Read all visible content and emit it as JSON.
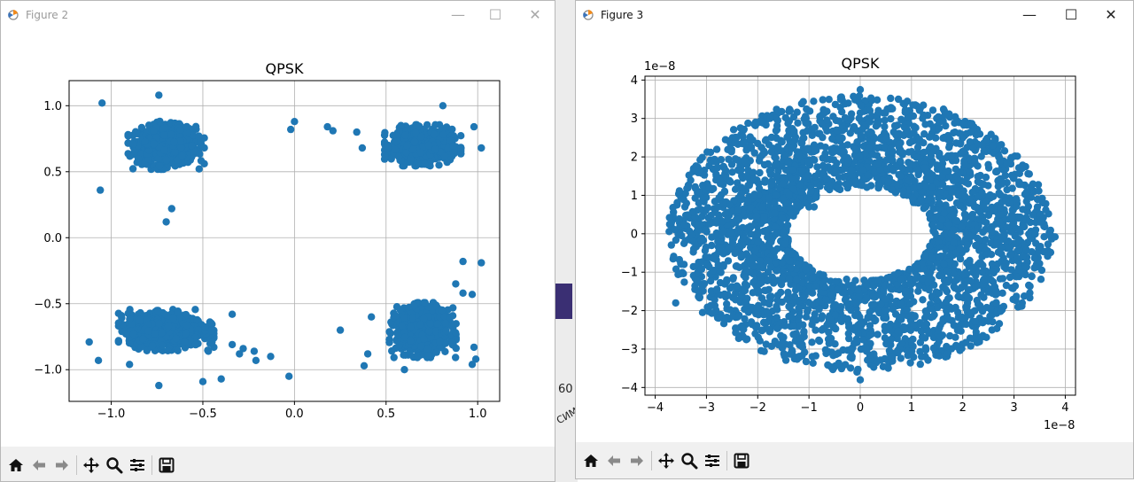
{
  "background": {
    "label_number": "60",
    "label_fragment": "СИМВ"
  },
  "windows": [
    {
      "id": "figure2",
      "title": "Figure 2",
      "active": false,
      "controls": {
        "minimize": "—",
        "maximize": "☐",
        "close": "✕"
      },
      "toolbar": {
        "icons": [
          "home-icon",
          "back-arrow-icon",
          "forward-arrow-icon",
          "pan-icon",
          "zoom-icon",
          "configure-subplots-icon",
          "save-icon"
        ]
      },
      "chart_data": {
        "type": "scatter",
        "title": "QPSK",
        "xlabel": "",
        "ylabel": "",
        "xlim": [
          -1.23,
          1.12
        ],
        "ylim": [
          -1.24,
          1.19
        ],
        "xticks": [
          -1.0,
          -0.5,
          0.0,
          0.5,
          1.0
        ],
        "xtick_labels": [
          "−1.0",
          "−0.5",
          "0.0",
          "0.5",
          "1.0"
        ],
        "yticks": [
          1.0,
          0.5,
          0.0,
          -0.5,
          -1.0
        ],
        "ytick_labels": [
          "1.0",
          "0.5",
          "0.0",
          "−0.5",
          "−1.0"
        ],
        "grid": true,
        "point_color": "#1f77b4",
        "clusters": [
          {
            "center": [
              -0.7,
              0.7
            ],
            "spread": [
              0.08,
              0.07
            ],
            "count": 900
          },
          {
            "center": [
              0.7,
              0.7
            ],
            "spread": [
              0.08,
              0.06
            ],
            "count": 700
          },
          {
            "center": [
              -0.7,
              -0.7
            ],
            "spread": [
              0.1,
              0.06
            ],
            "count": 1000
          },
          {
            "center": [
              0.7,
              -0.7
            ],
            "spread": [
              0.07,
              0.08
            ],
            "count": 900
          }
        ],
        "points": [
          [
            -1.05,
            1.02
          ],
          [
            -0.74,
            1.08
          ],
          [
            -1.06,
            0.36
          ],
          [
            -0.7,
            0.12
          ],
          [
            -0.67,
            0.22
          ],
          [
            -0.02,
            0.82
          ],
          [
            0.0,
            0.88
          ],
          [
            0.18,
            0.84
          ],
          [
            0.21,
            0.81
          ],
          [
            0.34,
            0.8
          ],
          [
            0.37,
            0.68
          ],
          [
            0.81,
            1.0
          ],
          [
            0.98,
            0.84
          ],
          [
            1.02,
            0.68
          ],
          [
            -1.12,
            -0.79
          ],
          [
            -1.07,
            -0.93
          ],
          [
            -0.9,
            -0.96
          ],
          [
            -0.74,
            -1.12
          ],
          [
            -0.5,
            -1.09
          ],
          [
            -0.4,
            -1.07
          ],
          [
            -0.3,
            -0.88
          ],
          [
            -0.28,
            -0.84
          ],
          [
            -0.22,
            -0.86
          ],
          [
            -0.21,
            -0.93
          ],
          [
            -0.13,
            -0.9
          ],
          [
            -0.34,
            -0.81
          ],
          [
            -0.45,
            -0.79
          ],
          [
            -0.47,
            -0.86
          ],
          [
            -0.34,
            -0.58
          ],
          [
            -0.03,
            -1.05
          ],
          [
            0.25,
            -0.7
          ],
          [
            0.4,
            -0.88
          ],
          [
            0.42,
            -0.6
          ],
          [
            0.38,
            -0.97
          ],
          [
            0.92,
            -0.18
          ],
          [
            1.02,
            -0.19
          ],
          [
            0.92,
            -0.42
          ],
          [
            0.97,
            -0.43
          ],
          [
            0.98,
            -0.83
          ],
          [
            0.99,
            -0.92
          ],
          [
            0.97,
            -0.96
          ],
          [
            0.6,
            -1.0
          ],
          [
            0.85,
            -0.6
          ],
          [
            0.88,
            -0.35
          ]
        ]
      }
    },
    {
      "id": "figure3",
      "title": "Figure 3",
      "active": true,
      "controls": {
        "minimize": "—",
        "maximize": "☐",
        "close": "✕"
      },
      "toolbar": {
        "icons": [
          "home-icon",
          "back-arrow-icon",
          "forward-arrow-icon",
          "pan-icon",
          "zoom-icon",
          "configure-subplots-icon",
          "save-icon"
        ]
      },
      "chart_data": {
        "type": "scatter",
        "title": "QPSK",
        "xlabel": "",
        "ylabel": "",
        "x_offset_label": "1e−8",
        "y_offset_label": "1e−8",
        "xlim": [
          -4.2,
          4.2
        ],
        "ylim": [
          -4.2,
          4.1
        ],
        "xticks": [
          -4,
          -3,
          -2,
          -1,
          0,
          1,
          2,
          3,
          4
        ],
        "xtick_labels": [
          "−4",
          "−3",
          "−2",
          "−1",
          "0",
          "1",
          "2",
          "3",
          "4"
        ],
        "yticks": [
          4,
          3,
          2,
          1,
          0,
          -1,
          -2,
          -3,
          -4
        ],
        "ytick_labels": [
          "4",
          "3",
          "2",
          "1",
          "0",
          "−1",
          "−2",
          "−3",
          "−4"
        ],
        "grid": true,
        "point_color": "#1f77b4",
        "ring": {
          "inner_radius": [
            1.4,
            1.2
          ],
          "outer_radius": [
            3.75,
            3.6
          ],
          "count": 3200
        },
        "points": [
          [
            3.8,
            -0.08
          ],
          [
            0.0,
            -3.8
          ],
          [
            -3.6,
            -1.8
          ],
          [
            -1.0,
            0.7
          ],
          [
            -0.9,
            0.7
          ],
          [
            0.0,
            3.75
          ]
        ]
      }
    }
  ]
}
